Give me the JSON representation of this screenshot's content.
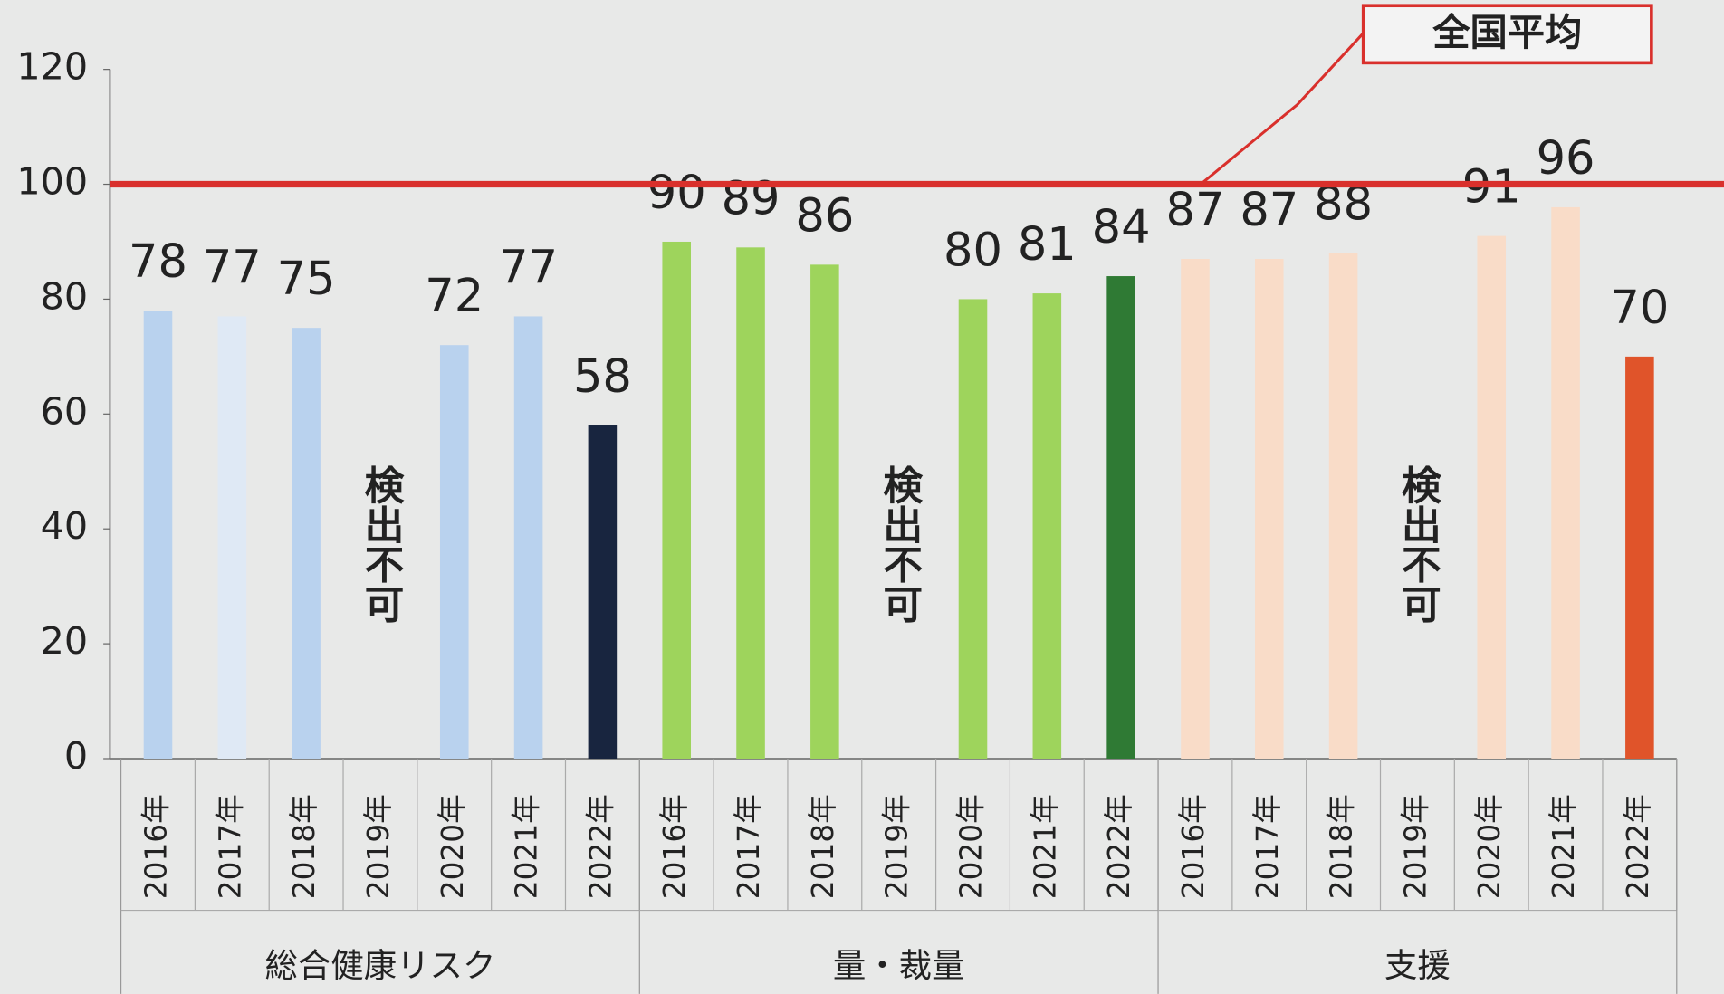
{
  "chart_data": {
    "type": "bar",
    "ylim": [
      0,
      120
    ],
    "yticks": [
      0,
      20,
      40,
      60,
      80,
      100,
      120
    ],
    "reference_line": {
      "value": 100,
      "label": "全国平均",
      "color": "#d9302c"
    },
    "groups": [
      {
        "name": "総合健康リスク",
        "missing_label": "検出不可",
        "categories": [
          "2016年",
          "2017年",
          "2018年",
          "2019年",
          "2020年",
          "2021年",
          "2022年"
        ],
        "values": [
          78,
          77,
          75,
          null,
          72,
          77,
          58
        ],
        "colors": [
          "#b9d2ee",
          "#dfe9f5",
          "#b9d2ee",
          "#b9d2ee",
          "#b9d2ee",
          "#b9d2ee",
          "#18253f"
        ]
      },
      {
        "name": "量・裁量",
        "missing_label": "検出不可",
        "categories": [
          "2016年",
          "2017年",
          "2018年",
          "2019年",
          "2020年",
          "2021年",
          "2022年"
        ],
        "values": [
          90,
          89,
          86,
          null,
          80,
          81,
          84
        ],
        "colors": [
          "#9ed45c",
          "#9ed45c",
          "#9ed45c",
          "#9ed45c",
          "#9ed45c",
          "#9ed45c",
          "#2f7a34"
        ]
      },
      {
        "name": "支援",
        "missing_label": "検出不可",
        "categories": [
          "2016年",
          "2017年",
          "2018年",
          "2019年",
          "2020年",
          "2021年",
          "2022年"
        ],
        "values": [
          87,
          87,
          88,
          null,
          91,
          96,
          70
        ],
        "colors": [
          "#f9dcc8",
          "#f9dcc8",
          "#f9dcc8",
          "#f9dcc8",
          "#f9dcc8",
          "#f9dcc8",
          "#e0542a"
        ]
      }
    ]
  }
}
